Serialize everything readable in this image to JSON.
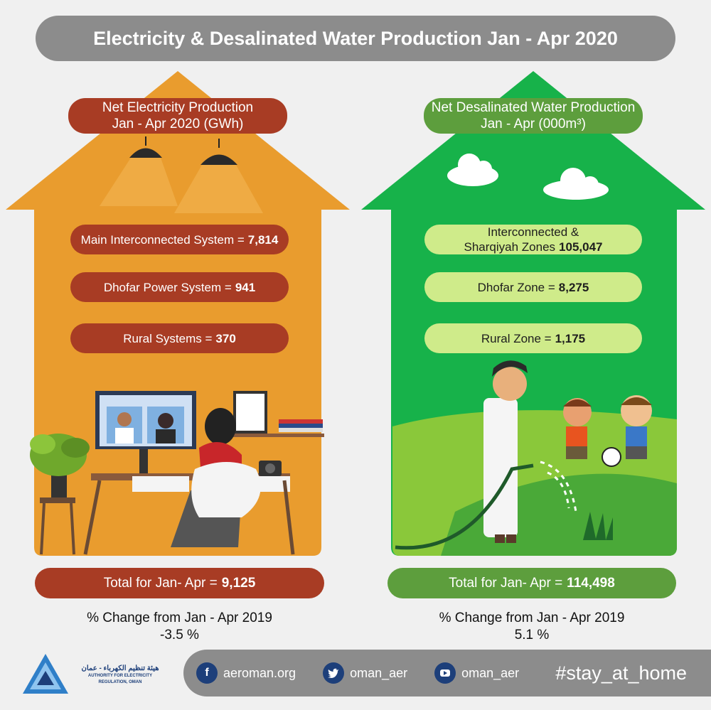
{
  "title": "Electricity & Desalinated Water Production Jan - Apr 2020",
  "electricity": {
    "heading_line1": "Net Electricity Production",
    "heading_line2": "Jan - Apr 2020 (GWh)",
    "items": [
      {
        "label": "Main Interconnected System  =",
        "value": "7,814"
      },
      {
        "label": "Dhofar Power System =",
        "value": "941"
      },
      {
        "label": "Rural Systems =",
        "value": "370"
      }
    ],
    "total_label": "Total for Jan- Apr =",
    "total_value": "9,125",
    "change_label": "% Change from Jan - Apr 2019",
    "change_value": "-3.5 %"
  },
  "water": {
    "heading_line1": "Net Desalinated Water Production",
    "heading_line2": "Jan - Apr (000m³)",
    "items": [
      {
        "label_line1": "Interconnected &",
        "label": "Sharqiyah Zones",
        "value": "105,047"
      },
      {
        "label": "Dhofar Zone  =",
        "value": "8,275"
      },
      {
        "label": "Rural Zone =",
        "value": "1,175"
      }
    ],
    "total_label": "Total for Jan- Apr =",
    "total_value": "114,498",
    "change_label": "% Change from Jan - Apr 2019",
    "change_value": "5.1 %"
  },
  "footer": {
    "org_arabic": "هيئة تنظيم الكهرباء - عمان",
    "org_english": "AUTHORITY FOR ELECTRICITY REGULATION, OMAN",
    "website": "aeroman.org",
    "twitter": "oman_aer",
    "youtube": "oman_aer",
    "hashtag": "#stay_at_home",
    "icons": {
      "website": "facebook-icon",
      "twitter": "twitter-icon",
      "youtube": "youtube-icon"
    }
  },
  "colors": {
    "orange": "#e99c2e",
    "red": "#a83c24",
    "green": "#17b24a",
    "dark_green": "#5d9e3d",
    "light_green": "#cfeb8a",
    "gray": "#8c8c8c",
    "navy": "#1d3f7a"
  }
}
